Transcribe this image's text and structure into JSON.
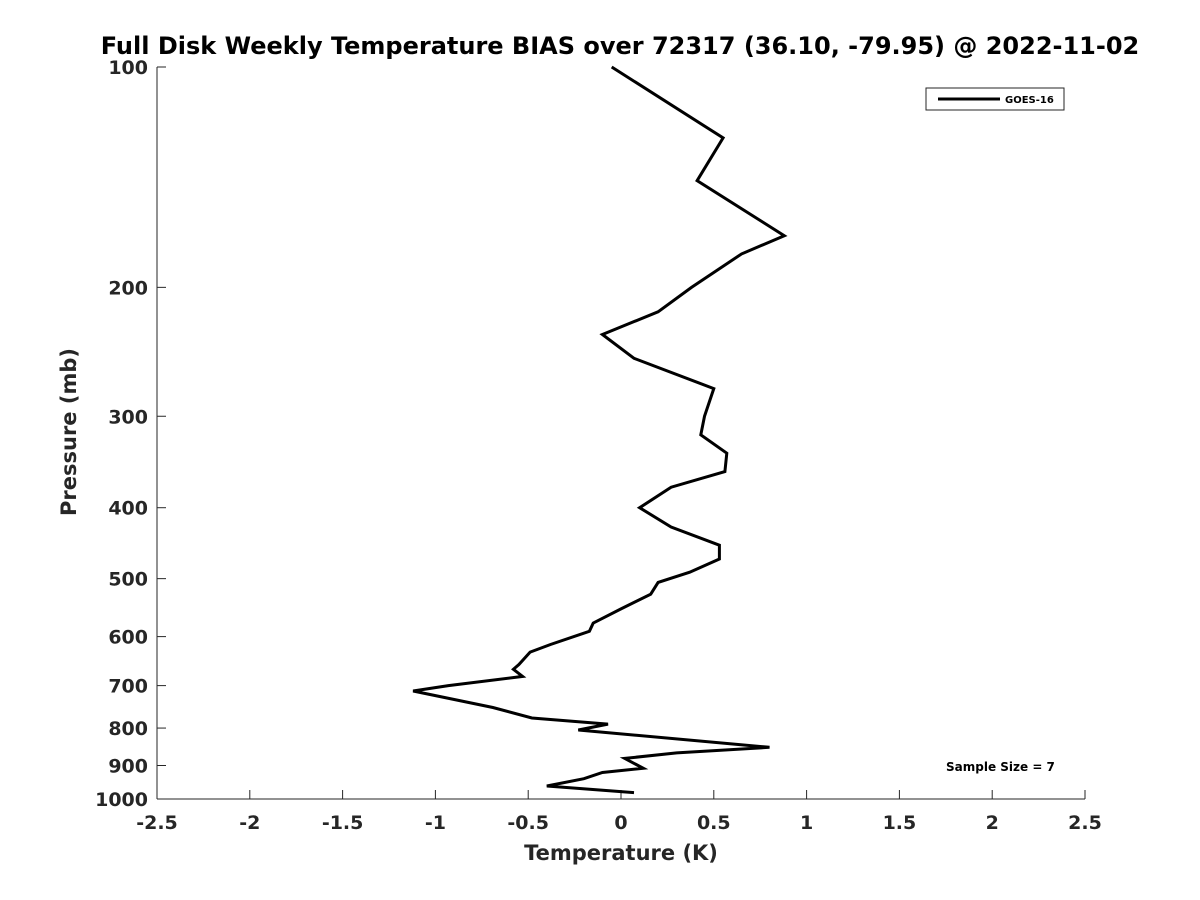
{
  "chart_data": {
    "type": "line",
    "title": "Full Disk Weekly Temperature BIAS over 72317 (36.10, -79.95) @ 2022-11-02",
    "xlabel": "Temperature (K)",
    "ylabel": "Pressure (mb)",
    "xlim": [
      -2.5,
      2.5
    ],
    "ylim": [
      100,
      1000
    ],
    "y_scale": "log",
    "y_reversed": true,
    "x_ticks": [
      {
        "value": -2.5,
        "label": "-2.5"
      },
      {
        "value": -2,
        "label": "-2"
      },
      {
        "value": -1.5,
        "label": "-1.5"
      },
      {
        "value": -1,
        "label": "-1"
      },
      {
        "value": -0.5,
        "label": "-0.5"
      },
      {
        "value": 0,
        "label": "0"
      },
      {
        "value": 0.5,
        "label": "0.5"
      },
      {
        "value": 1,
        "label": "1"
      },
      {
        "value": 1.5,
        "label": "1.5"
      },
      {
        "value": 2,
        "label": "2"
      },
      {
        "value": 2.5,
        "label": "2.5"
      }
    ],
    "y_ticks": [
      {
        "value": 100,
        "label": "100"
      },
      {
        "value": 200,
        "label": "200"
      },
      {
        "value": 300,
        "label": "300"
      },
      {
        "value": 400,
        "label": "400"
      },
      {
        "value": 500,
        "label": "500"
      },
      {
        "value": 600,
        "label": "600"
      },
      {
        "value": 700,
        "label": "700"
      },
      {
        "value": 800,
        "label": "800"
      },
      {
        "value": 900,
        "label": "900"
      },
      {
        "value": 1000,
        "label": "1000"
      }
    ],
    "grid": false,
    "legend_position": "top-right",
    "series": [
      {
        "name": "GOES-16",
        "color": "#000000",
        "points": [
          {
            "x": -0.05,
            "y": 100
          },
          {
            "x": 0.55,
            "y": 125
          },
          {
            "x": 0.41,
            "y": 143
          },
          {
            "x": 0.88,
            "y": 170
          },
          {
            "x": 0.65,
            "y": 180
          },
          {
            "x": 0.38,
            "y": 200
          },
          {
            "x": 0.2,
            "y": 216
          },
          {
            "x": -0.1,
            "y": 232
          },
          {
            "x": 0.07,
            "y": 250
          },
          {
            "x": 0.5,
            "y": 275
          },
          {
            "x": 0.45,
            "y": 300
          },
          {
            "x": 0.43,
            "y": 318
          },
          {
            "x": 0.57,
            "y": 337
          },
          {
            "x": 0.56,
            "y": 357
          },
          {
            "x": 0.27,
            "y": 375
          },
          {
            "x": 0.1,
            "y": 400
          },
          {
            "x": 0.27,
            "y": 425
          },
          {
            "x": 0.53,
            "y": 450
          },
          {
            "x": 0.53,
            "y": 470
          },
          {
            "x": 0.37,
            "y": 490
          },
          {
            "x": 0.2,
            "y": 506
          },
          {
            "x": 0.16,
            "y": 525
          },
          {
            "x": 0.0,
            "y": 550
          },
          {
            "x": -0.15,
            "y": 575
          },
          {
            "x": -0.17,
            "y": 590
          },
          {
            "x": -0.38,
            "y": 615
          },
          {
            "x": -0.49,
            "y": 630
          },
          {
            "x": -0.55,
            "y": 655
          },
          {
            "x": -0.58,
            "y": 665
          },
          {
            "x": -0.53,
            "y": 680
          },
          {
            "x": -0.93,
            "y": 700
          },
          {
            "x": -1.12,
            "y": 712
          },
          {
            "x": -0.69,
            "y": 750
          },
          {
            "x": -0.48,
            "y": 775
          },
          {
            "x": -0.07,
            "y": 790
          },
          {
            "x": -0.23,
            "y": 805
          },
          {
            "x": 0.8,
            "y": 850
          },
          {
            "x": 0.3,
            "y": 865
          },
          {
            "x": 0.02,
            "y": 880
          },
          {
            "x": 0.12,
            "y": 908
          },
          {
            "x": -0.1,
            "y": 920
          },
          {
            "x": -0.2,
            "y": 938
          },
          {
            "x": -0.4,
            "y": 960
          },
          {
            "x": 0.07,
            "y": 980
          }
        ]
      }
    ],
    "annotations": [
      {
        "text": "Sample Size = 7",
        "position": "bottom-right"
      }
    ]
  }
}
